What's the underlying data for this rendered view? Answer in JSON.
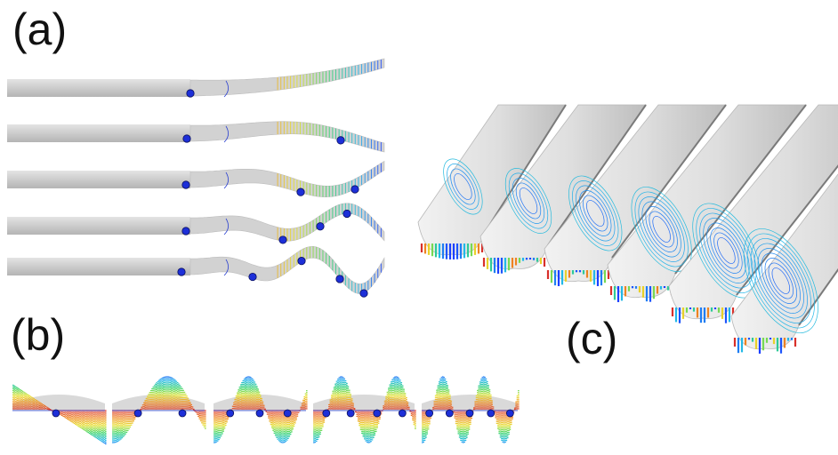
{
  "labels": {
    "a": "(a)",
    "b": "(b)",
    "c": "(c)"
  },
  "colors": {
    "rod": "#cfcfcf",
    "rod_dark": "#a9a9a9",
    "contour": "#2a3fd0",
    "node_fill": "#1d2fd8",
    "node_stroke": "#0a1060",
    "gradient": [
      "#1a3cff",
      "#22b8e8",
      "#35d46a",
      "#e6e22c",
      "#f08a20",
      "#d8302a"
    ]
  },
  "panel_a": {
    "beams": [
      {
        "mode": 1,
        "nodes": 1
      },
      {
        "mode": 2,
        "nodes": 2
      },
      {
        "mode": 3,
        "nodes": 3
      },
      {
        "mode": 4,
        "nodes": 4
      },
      {
        "mode": 5,
        "nodes": 5
      }
    ]
  },
  "panel_b": {
    "sections": [
      {
        "mode": 1,
        "nodes": 1
      },
      {
        "mode": 2,
        "nodes": 2
      },
      {
        "mode": 3,
        "nodes": 3
      },
      {
        "mode": 4,
        "nodes": 4
      },
      {
        "mode": 5,
        "nodes": 5
      }
    ]
  },
  "panel_c": {
    "rods": [
      {
        "mode": 1
      },
      {
        "mode": 2
      },
      {
        "mode": 3
      },
      {
        "mode": 4
      },
      {
        "mode": 5
      },
      {
        "mode": 6
      }
    ]
  }
}
